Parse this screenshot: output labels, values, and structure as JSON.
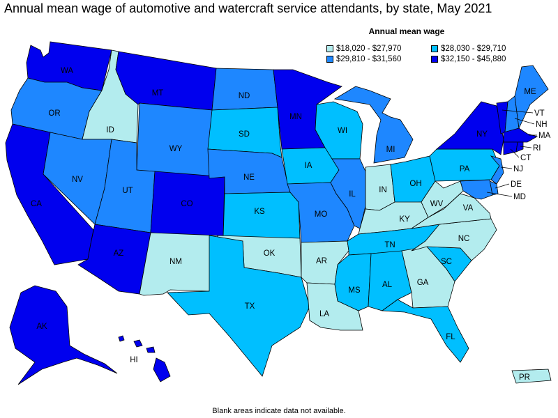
{
  "title": "Annual mean wage of automotive and watercraft service attendants, by state, May 2021",
  "legend": {
    "title": "Annual mean wage",
    "items": [
      {
        "label": "$18,020 - $27,970",
        "color": "#b3ecee"
      },
      {
        "label": "$28,030 - $29,710",
        "color": "#00bfff"
      },
      {
        "label": "$29,810 - $31,560",
        "color": "#1e87ff"
      },
      {
        "label": "$32,150 - $45,880",
        "color": "#0000ee"
      }
    ]
  },
  "footnote": "Blank areas indicate data not available.",
  "states": {
    "WA": {
      "label": "WA",
      "tier": 3
    },
    "OR": {
      "label": "OR",
      "tier": 2
    },
    "CA": {
      "label": "CA",
      "tier": 3
    },
    "ID": {
      "label": "ID",
      "tier": 0
    },
    "NV": {
      "label": "NV",
      "tier": 2
    },
    "MT": {
      "label": "MT",
      "tier": 3
    },
    "WY": {
      "label": "WY",
      "tier": 2
    },
    "UT": {
      "label": "UT",
      "tier": 2
    },
    "AZ": {
      "label": "AZ",
      "tier": 3
    },
    "CO": {
      "label": "CO",
      "tier": 3
    },
    "NM": {
      "label": "NM",
      "tier": 0
    },
    "ND": {
      "label": "ND",
      "tier": 2
    },
    "SD": {
      "label": "SD",
      "tier": 1
    },
    "NE": {
      "label": "NE",
      "tier": 2
    },
    "KS": {
      "label": "KS",
      "tier": 1
    },
    "OK": {
      "label": "OK",
      "tier": 0
    },
    "TX": {
      "label": "TX",
      "tier": 1
    },
    "MN": {
      "label": "MN",
      "tier": 3
    },
    "IA": {
      "label": "IA",
      "tier": 1
    },
    "MO": {
      "label": "MO",
      "tier": 2
    },
    "AR": {
      "label": "AR",
      "tier": 0
    },
    "LA": {
      "label": "LA",
      "tier": 0
    },
    "WI": {
      "label": "WI",
      "tier": 1
    },
    "IL": {
      "label": "IL",
      "tier": 2
    },
    "MI": {
      "label": "MI",
      "tier": 2
    },
    "IN": {
      "label": "IN",
      "tier": 0
    },
    "OH": {
      "label": "OH",
      "tier": 1
    },
    "KY": {
      "label": "KY",
      "tier": 0
    },
    "TN": {
      "label": "TN",
      "tier": 1
    },
    "MS": {
      "label": "MS",
      "tier": 1
    },
    "AL": {
      "label": "AL",
      "tier": 1
    },
    "GA": {
      "label": "GA",
      "tier": 0
    },
    "FL": {
      "label": "FL",
      "tier": 1
    },
    "SC": {
      "label": "SC",
      "tier": 1
    },
    "NC": {
      "label": "NC",
      "tier": 0
    },
    "VA": {
      "label": "VA",
      "tier": 0
    },
    "WV": {
      "label": "WV",
      "tier": 0
    },
    "PA": {
      "label": "PA",
      "tier": 1
    },
    "NY": {
      "label": "NY",
      "tier": 3
    },
    "VT": {
      "label": "VT",
      "tier": 3
    },
    "NH": {
      "label": "NH",
      "tier": 2
    },
    "ME": {
      "label": "ME",
      "tier": 2
    },
    "MA": {
      "label": "MA",
      "tier": 3
    },
    "CT": {
      "label": "CT",
      "tier": 3
    },
    "RI": {
      "label": "RI",
      "tier": 3
    },
    "NJ": {
      "label": "NJ",
      "tier": 2
    },
    "DE": {
      "label": "DE",
      "tier": 2
    },
    "MD": {
      "label": "MD",
      "tier": 2
    },
    "AK": {
      "label": "AK",
      "tier": 3
    },
    "HI": {
      "label": "HI",
      "tier": 3
    },
    "PR": {
      "label": "PR",
      "tier": 0
    }
  }
}
